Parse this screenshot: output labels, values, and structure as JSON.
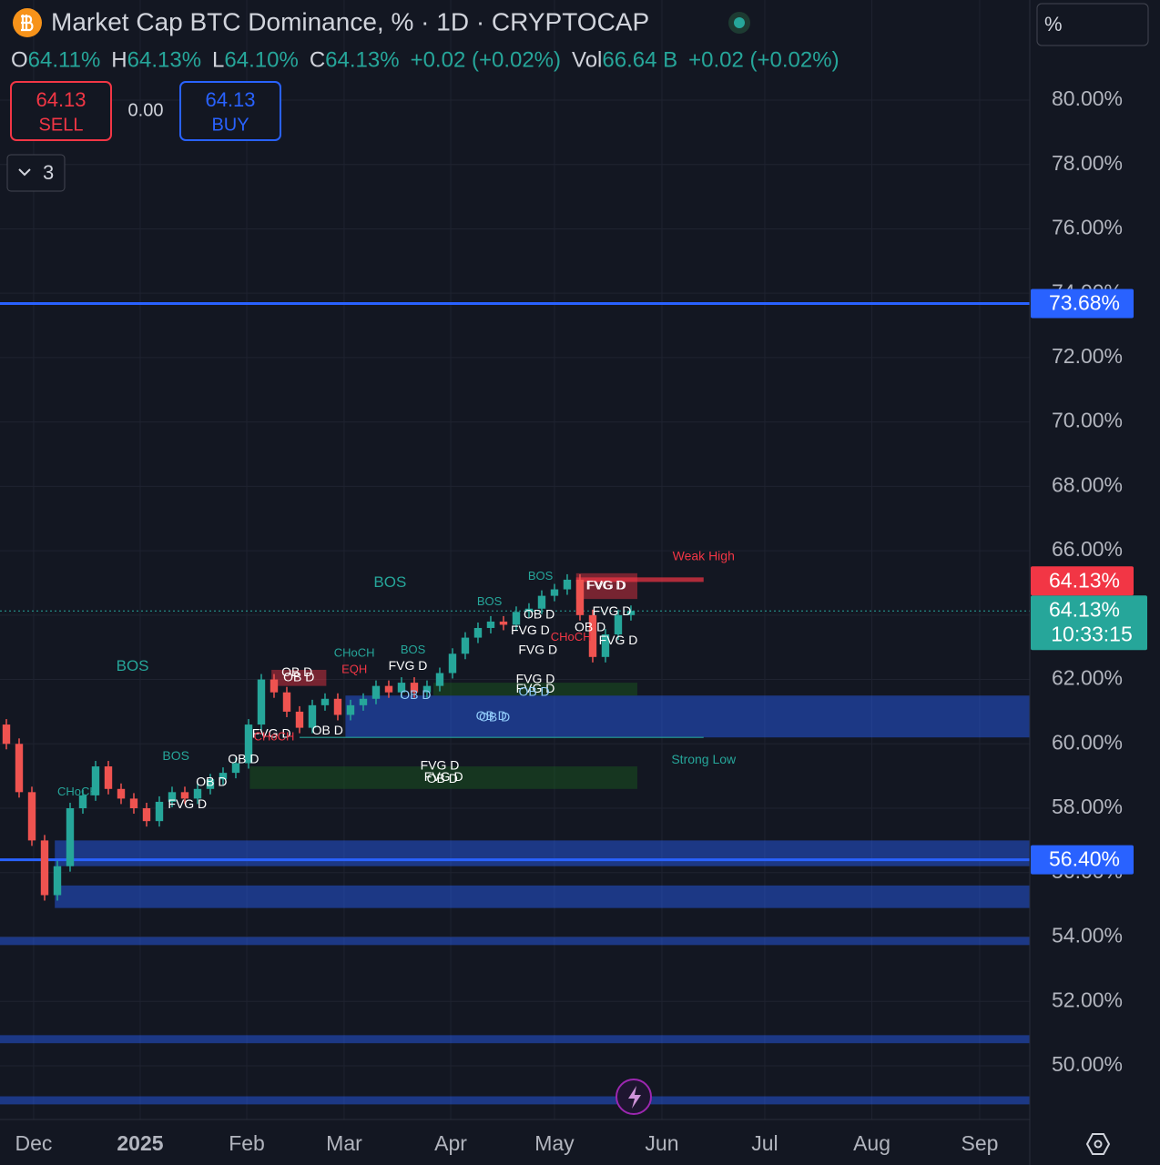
{
  "header": {
    "title": "Market Cap BTC Dominance, % · 1D · CRYPTOCAP",
    "ohlc": [
      {
        "key": "O",
        "value": "64.11%"
      },
      {
        "key": "H",
        "value": "64.13%"
      },
      {
        "key": "L",
        "value": "64.10%"
      },
      {
        "key": "C",
        "value": "64.13%"
      }
    ],
    "change": "+0.02 (+0.02%)",
    "vol_key": "Vol",
    "vol_value": "66.64 B",
    "vol_change": "+0.02 (+0.02%)",
    "sell_price": "64.13",
    "sell": "SELL",
    "spread": "0.00",
    "buy_price": "64.13",
    "buy": "BUY",
    "indicators_count": "3",
    "scale_mode": "%"
  },
  "chart_data": {
    "type": "candlestick",
    "categories": [
      null,
      null,
      null,
      null,
      null,
      null,
      null,
      null,
      null,
      null,
      null,
      null,
      null,
      null,
      null,
      null,
      null,
      null,
      null,
      null,
      null,
      null,
      null,
      null,
      null,
      null,
      null,
      null,
      null,
      null,
      null,
      null,
      null,
      null,
      null,
      null,
      null,
      null,
      null,
      null,
      null,
      null,
      null,
      null,
      null,
      null,
      null,
      null,
      null,
      null
    ],
    "candles": {
      "open": [
        60.6,
        60.0,
        58.5,
        57.0,
        55.3,
        56.2,
        58.0,
        58.4,
        59.3,
        58.6,
        58.3,
        58.0,
        57.6,
        58.2,
        58.5,
        58.3,
        58.6,
        58.9,
        59.1,
        59.4,
        60.6,
        62.0,
        61.6,
        61.0,
        60.5,
        61.2,
        61.4,
        60.9,
        61.2,
        61.4,
        61.8,
        61.6,
        61.9,
        61.6,
        61.8,
        62.2,
        62.8,
        63.3,
        63.6,
        63.8,
        63.7,
        64.1,
        64.2,
        64.6,
        64.8,
        65.1,
        64.0,
        62.7,
        63.4,
        64.0
      ],
      "close": [
        60.0,
        58.5,
        57.0,
        55.3,
        56.2,
        58.0,
        58.4,
        59.3,
        58.6,
        58.3,
        58.0,
        57.6,
        58.2,
        58.5,
        58.3,
        58.6,
        58.9,
        59.1,
        59.4,
        60.6,
        62.0,
        61.6,
        61.0,
        60.5,
        61.2,
        61.4,
        60.9,
        61.2,
        61.4,
        61.8,
        61.6,
        61.9,
        61.6,
        61.8,
        62.2,
        62.8,
        63.3,
        63.6,
        63.8,
        63.7,
        64.1,
        64.2,
        64.6,
        64.8,
        65.1,
        64.0,
        62.7,
        63.4,
        64.0,
        64.13
      ]
    },
    "up_color": "#26a69a",
    "down_color": "#ef5350",
    "xlim": [
      -0.5,
      80.29
    ],
    "xticks": [
      {
        "value": 2.14,
        "label": "Dec"
      },
      {
        "value": 10.5,
        "label": "2025"
      },
      {
        "value": 18.86,
        "label": "Feb"
      },
      {
        "value": 26.5,
        "label": "Mar"
      },
      {
        "value": 34.86,
        "label": "Apr"
      },
      {
        "value": 43,
        "label": "May"
      },
      {
        "value": 51.43,
        "label": "Jun"
      },
      {
        "value": 59.5,
        "label": "Jul"
      },
      {
        "value": 67.9,
        "label": "Aug"
      },
      {
        "value": 76.36,
        "label": "Sep"
      }
    ],
    "ylim": [
      48.33,
      83.11
    ],
    "yticks": [
      {
        "value": 50,
        "label": "50.00%"
      },
      {
        "value": 52,
        "label": "52.00%"
      },
      {
        "value": 54,
        "label": "54.00%"
      },
      {
        "value": 56,
        "label": "56.00%"
      },
      {
        "value": 58,
        "label": "58.00%"
      },
      {
        "value": 60,
        "label": "60.00%"
      },
      {
        "value": 62,
        "label": "62.00%"
      },
      {
        "value": 64,
        "label": "64.00%"
      },
      {
        "value": 66,
        "label": "66.00%"
      },
      {
        "value": 68,
        "label": "68.00%"
      },
      {
        "value": 70,
        "label": "70.00%"
      },
      {
        "value": 72,
        "label": "72.00%"
      },
      {
        "value": 74,
        "label": "74.00%"
      },
      {
        "value": 76,
        "label": "76.00%"
      },
      {
        "value": 78,
        "label": "78.00%"
      },
      {
        "value": 80,
        "label": "80.00%"
      }
    ],
    "grid": true,
    "zones": [
      {
        "label": "OB D",
        "top": 61.5,
        "bottom": 60.2,
        "from": 26.6,
        "to": 80.29,
        "color": "#2962ff"
      },
      {
        "label": null,
        "top": 57.0,
        "bottom": 56.2,
        "from": 3.8,
        "to": 80.29,
        "color": "#2962ff"
      },
      {
        "label": null,
        "top": 55.6,
        "bottom": 54.9,
        "from": 3.8,
        "to": 80.29,
        "color": "#2962ff"
      },
      {
        "label": null,
        "top": 54.0,
        "bottom": 53.75,
        "from": -0.5,
        "to": 80.29,
        "color": "#2962ff"
      },
      {
        "label": null,
        "top": 50.95,
        "bottom": 50.7,
        "from": -0.5,
        "to": 80.29,
        "color": "#2962ff"
      },
      {
        "label": null,
        "top": 49.05,
        "bottom": 48.8,
        "from": -0.5,
        "to": 80.29,
        "color": "#2962ff"
      },
      {
        "label": "FVG D",
        "top": 59.3,
        "bottom": 58.6,
        "from": 19.1,
        "to": 49.5,
        "color": "#1b5e20"
      },
      {
        "label": "FVG D",
        "top": 61.9,
        "bottom": 61.5,
        "from": 33.5,
        "to": 49.5,
        "color": "#1b5e20"
      },
      {
        "label": "FVG D",
        "top": 65.3,
        "bottom": 64.5,
        "from": 44.7,
        "to": 49.5,
        "color": "#f23645"
      },
      {
        "label": "OB D",
        "top": 62.3,
        "bottom": 61.8,
        "from": 20.8,
        "to": 25.1,
        "color": "#f23645"
      }
    ],
    "lines": [
      {
        "value": 73.68,
        "label": "73.68%",
        "color": "#2962ff"
      },
      {
        "value": 56.4,
        "label": "56.40%",
        "color": "#2962ff"
      }
    ],
    "weak_high": {
      "value": 65.1,
      "from": 44.7,
      "to": 54.7,
      "label": "Weak High",
      "color": "#f23645"
    },
    "strong_low": {
      "value": 60.2,
      "from": 23,
      "to": 54.7,
      "label": "Strong Low",
      "color": "#26a69a"
    },
    "last_price": {
      "value": 64.13,
      "label": "64.13%",
      "countdown": "10:33:15",
      "color": "#26a69a"
    },
    "sell_line": {
      "value": 64.13,
      "label": "64.13%",
      "color": "#f23645"
    },
    "annotations": [
      {
        "text": "BOS",
        "value": 65.0,
        "at": 30.1,
        "color": "#26a69a",
        "size": 17
      },
      {
        "text": "BOS",
        "value": 62.4,
        "at": 9.9,
        "color": "#26a69a",
        "size": 17
      },
      {
        "text": "BOS",
        "value": 59.6,
        "at": 13.3,
        "color": "#26a69a",
        "size": 14
      },
      {
        "text": "CHoCH",
        "value": 58.5,
        "at": 5.6,
        "color": "#26a69a",
        "size": 13
      },
      {
        "text": "CHoCH",
        "value": 62.8,
        "at": 27.3,
        "color": "#26a69a",
        "size": 13
      },
      {
        "text": "BOS",
        "value": 62.9,
        "at": 31.9,
        "color": "#26a69a",
        "size": 13
      },
      {
        "text": "BOS",
        "value": 64.4,
        "at": 37.9,
        "color": "#26a69a",
        "size": 13
      },
      {
        "text": "BOS",
        "value": 65.2,
        "at": 41.9,
        "color": "#26a69a",
        "size": 13
      },
      {
        "text": "OB D",
        "value": 62.2,
        "at": 22.8,
        "color": "#ffffff",
        "size": 14
      },
      {
        "text": "FVG D",
        "value": 60.3,
        "at": 20.8,
        "color": "#ffffff",
        "size": 14
      },
      {
        "text": "OB D",
        "value": 60.4,
        "at": 25.2,
        "color": "#ffffff",
        "size": 14
      },
      {
        "text": "FVG D",
        "value": 62.4,
        "at": 31.5,
        "color": "#ffffff",
        "size": 14
      },
      {
        "text": "OB D",
        "value": 61.5,
        "at": 32.1,
        "color": "#90caf9",
        "size": 14
      },
      {
        "text": "FVG D",
        "value": 62.0,
        "at": 41.5,
        "color": "#ffffff",
        "size": 14
      },
      {
        "text": "OB D",
        "value": 61.6,
        "at": 41.4,
        "color": "#90caf9",
        "size": 14
      },
      {
        "text": "OB D",
        "value": 60.8,
        "at": 38.3,
        "color": "#90caf9",
        "size": 14
      },
      {
        "text": "FVG D",
        "value": 62.9,
        "at": 41.7,
        "color": "#ffffff",
        "size": 14
      },
      {
        "text": "FVG D",
        "value": 63.5,
        "at": 41.1,
        "color": "#ffffff",
        "size": 14
      },
      {
        "text": "FVG D",
        "value": 64.9,
        "at": 47.0,
        "color": "#ffffff",
        "size": 14
      },
      {
        "text": "FVG D",
        "value": 63.2,
        "at": 48.0,
        "color": "#ffffff",
        "size": 14
      },
      {
        "text": "FVG D",
        "value": 59.3,
        "at": 34.0,
        "color": "#ffffff",
        "size": 14
      },
      {
        "text": "OB D",
        "value": 58.9,
        "at": 34.2,
        "color": "#ffffff",
        "size": 14
      },
      {
        "text": "FVG D",
        "value": 58.1,
        "at": 14.2,
        "color": "#ffffff",
        "size": 14
      },
      {
        "text": "OB D",
        "value": 58.8,
        "at": 16.1,
        "color": "#ffffff",
        "size": 14
      },
      {
        "text": "OB D",
        "value": 59.5,
        "at": 18.6,
        "color": "#ffffff",
        "size": 14
      },
      {
        "text": "CHoCH",
        "value": 63.3,
        "at": 44.3,
        "color": "#f23645",
        "size": 13
      },
      {
        "text": "EQH",
        "value": 62.3,
        "at": 27.3,
        "color": "#f23645",
        "size": 13
      },
      {
        "text": "CHoCH",
        "value": 60.2,
        "at": 21.0,
        "color": "#f23645",
        "size": 13
      },
      {
        "text": "OB D",
        "value": 64.0,
        "at": 41.8,
        "color": "#ffffff",
        "size": 14
      },
      {
        "text": "OB D",
        "value": 63.6,
        "at": 45.8,
        "color": "#ffffff",
        "size": 14
      },
      {
        "text": "FVG D",
        "value": 64.1,
        "at": 47.5,
        "color": "#ffffff",
        "size": 14
      }
    ]
  }
}
